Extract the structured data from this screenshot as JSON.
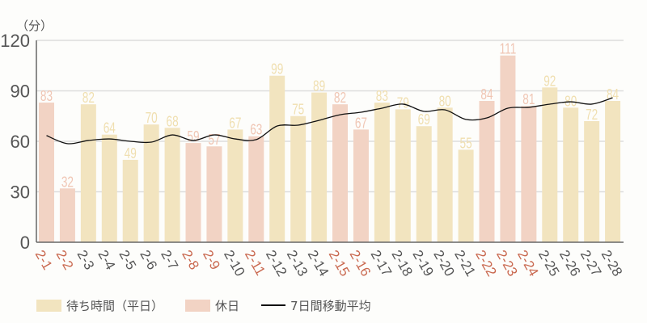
{
  "chart_data": {
    "type": "bar",
    "title": "",
    "ylabel": "（分）",
    "xlabel": "",
    "ylim": [
      0,
      120
    ],
    "yticks": [
      0,
      30,
      60,
      90,
      120
    ],
    "grid": true,
    "legend_position": "bottom-left",
    "categories": [
      "2-1",
      "2-2",
      "2-3",
      "2-4",
      "2-5",
      "2-6",
      "2-7",
      "2-8",
      "2-9",
      "2-10",
      "2-11",
      "2-12",
      "2-13",
      "2-14",
      "2-15",
      "2-16",
      "2-17",
      "2-18",
      "2-19",
      "2-20",
      "2-21",
      "2-22",
      "2-23",
      "2-24",
      "2-25",
      "2-26",
      "2-27",
      "2-28"
    ],
    "values": [
      83,
      32,
      82,
      64,
      49,
      70,
      68,
      59,
      57,
      67,
      63,
      99,
      75,
      89,
      82,
      67,
      83,
      79,
      69,
      80,
      55,
      84,
      111,
      81,
      92,
      80,
      72,
      84
    ],
    "holiday": [
      true,
      true,
      false,
      false,
      false,
      false,
      false,
      true,
      true,
      false,
      true,
      false,
      false,
      false,
      true,
      true,
      false,
      false,
      false,
      false,
      false,
      true,
      true,
      true,
      false,
      false,
      false,
      false
    ],
    "series": [
      {
        "name": "待ち時間（平日）",
        "type": "bar",
        "color": "#f2e4bf"
      },
      {
        "name": "休日",
        "type": "bar",
        "color": "#f2d3c4"
      },
      {
        "name": "7日間移動平均",
        "type": "line",
        "color": "#111111",
        "values": [
          63.4,
          58.6,
          60.5,
          61.4,
          60.0,
          59.5,
          63.8,
          60.5,
          63.8,
          61.4,
          61.0,
          69.1,
          69.6,
          72.5,
          75.8,
          77.3,
          79.7,
          82.1,
          77.8,
          78.7,
          73.0,
          73.9,
          79.7,
          80.2,
          82.1,
          83.5,
          82.1,
          85.9
        ]
      }
    ]
  },
  "colors": {
    "weekday_bar": "#f2e4bf",
    "weekday_label": "#f0dfb0",
    "holiday_bar": "#f2d3c4",
    "holiday_label": "#f0c6b4",
    "holiday_tick": "#c9684f",
    "weekday_tick": "#555555",
    "axis": "#666666",
    "grid": "#dddddd",
    "line": "#111111"
  },
  "legend": {
    "weekday": "待ち時間（平日）",
    "holiday": "休日",
    "moving_avg": "7日間移動平均"
  }
}
